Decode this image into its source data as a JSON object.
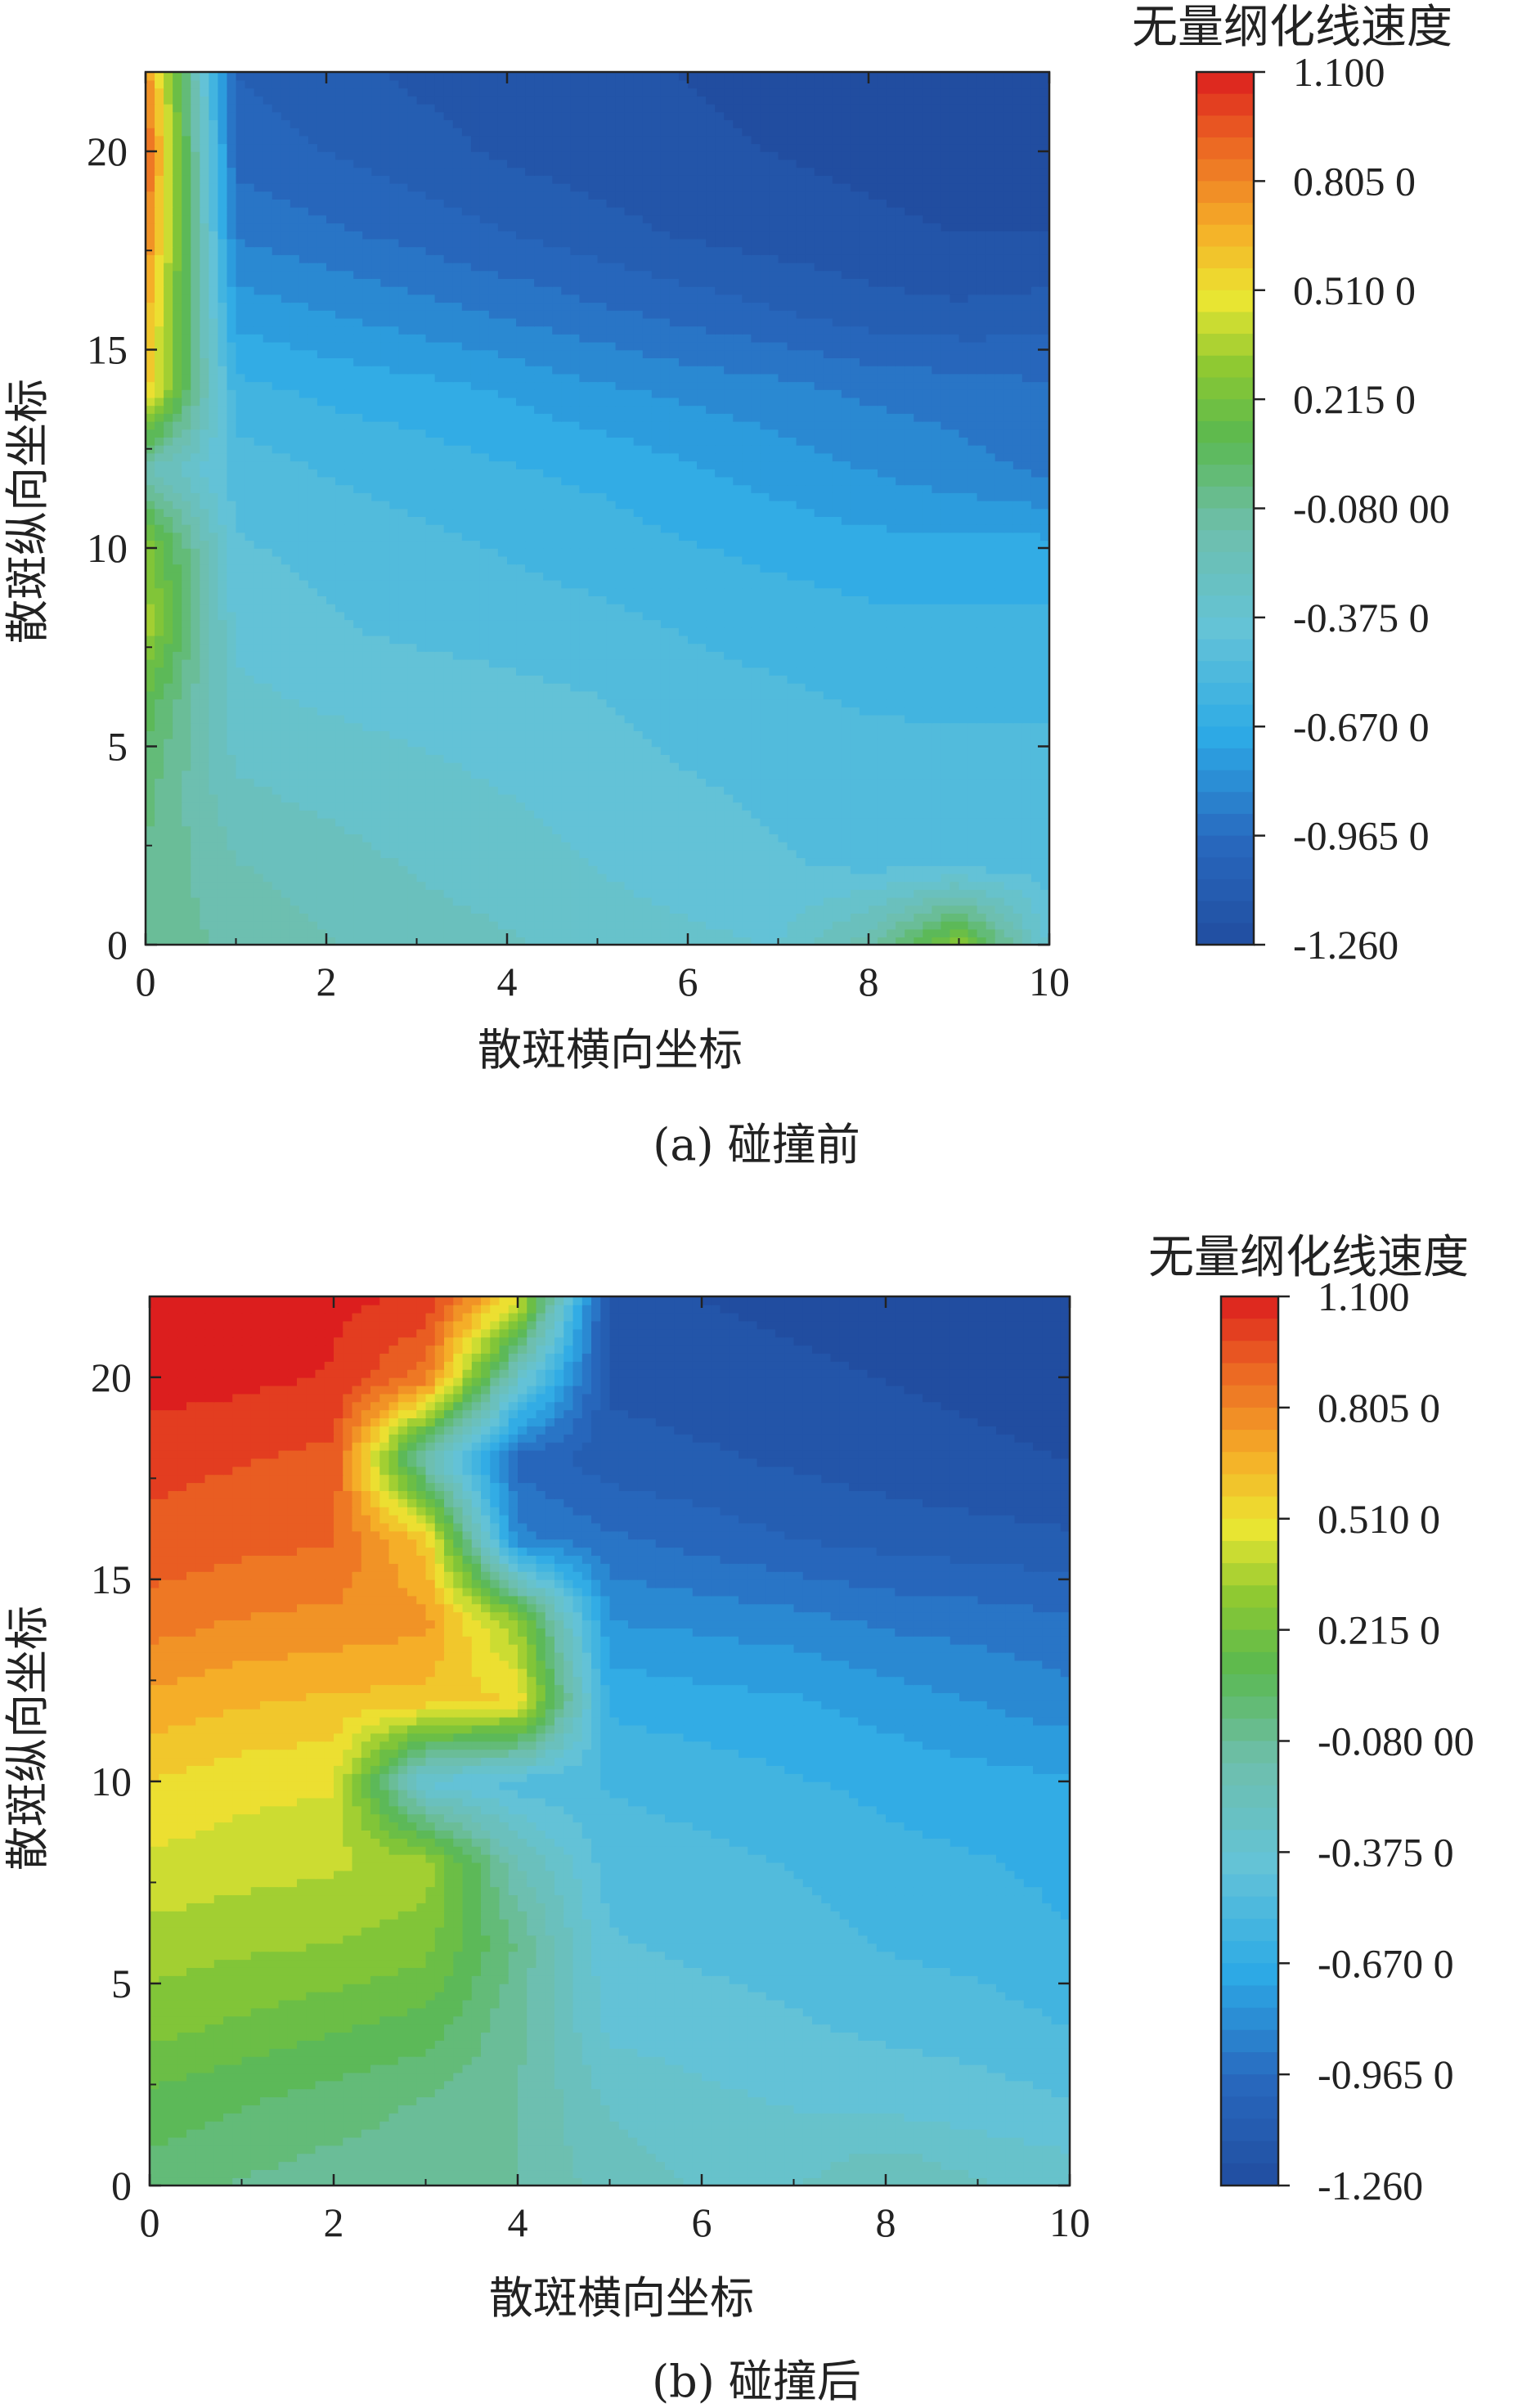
{
  "chart_data": [
    {
      "type": "heatmap",
      "caption": "(a) 碰撞前",
      "xlabel": "散斑横向坐标",
      "ylabel": "散斑纵向坐标",
      "xlim": [
        0,
        10
      ],
      "ylim": [
        0,
        22
      ],
      "xticks": [
        0,
        2,
        4,
        6,
        8,
        10
      ],
      "yticks": [
        0,
        5,
        10,
        15,
        20
      ],
      "x": [
        0,
        1,
        2,
        3,
        4,
        5,
        6,
        7,
        8,
        9,
        10
      ],
      "y": [
        0,
        2,
        4,
        6,
        8,
        10,
        12,
        14,
        16,
        18,
        20,
        22
      ],
      "z": [
        [
          -0.05,
          -0.15,
          -0.2,
          -0.25,
          -0.28,
          -0.32,
          -0.35,
          -0.38,
          -0.15,
          0.3,
          -0.4
        ],
        [
          -0.05,
          -0.2,
          -0.25,
          -0.3,
          -0.33,
          -0.38,
          -0.42,
          -0.45,
          -0.48,
          -0.48,
          -0.5
        ],
        [
          0.0,
          -0.28,
          -0.32,
          -0.35,
          -0.38,
          -0.42,
          -0.45,
          -0.48,
          -0.5,
          -0.52,
          -0.52
        ],
        [
          0.1,
          -0.35,
          -0.38,
          -0.4,
          -0.42,
          -0.45,
          -0.5,
          -0.52,
          -0.55,
          -0.55,
          -0.55
        ],
        [
          0.35,
          -0.4,
          -0.45,
          -0.48,
          -0.5,
          -0.52,
          -0.55,
          -0.58,
          -0.6,
          -0.6,
          -0.6
        ],
        [
          0.3,
          -0.45,
          -0.48,
          -0.52,
          -0.55,
          -0.58,
          -0.62,
          -0.65,
          -0.68,
          -0.68,
          -0.68
        ],
        [
          -0.2,
          -0.5,
          -0.55,
          -0.58,
          -0.62,
          -0.65,
          -0.7,
          -0.75,
          -0.8,
          -0.85,
          -0.9
        ],
        [
          0.6,
          -0.6,
          -0.65,
          -0.68,
          -0.72,
          -0.78,
          -0.82,
          -0.85,
          -0.9,
          -0.92,
          -0.95
        ],
        [
          0.7,
          -0.75,
          -0.8,
          -0.85,
          -0.9,
          -0.95,
          -1.0,
          -1.05,
          -1.1,
          -1.12,
          -1.1
        ],
        [
          0.85,
          -0.9,
          -0.95,
          -1.0,
          -1.05,
          -1.1,
          -1.15,
          -1.18,
          -1.2,
          -1.22,
          -1.22
        ],
        [
          0.95,
          -1.0,
          -1.05,
          -1.1,
          -1.15,
          -1.18,
          -1.2,
          -1.22,
          -1.24,
          -1.25,
          -1.25
        ],
        [
          0.8,
          -1.05,
          -1.1,
          -1.15,
          -1.18,
          -1.2,
          -1.22,
          -1.24,
          -1.25,
          -1.26,
          -1.26
        ]
      ],
      "colorbar": {
        "title": "无量纲化线速度",
        "min": -1.26,
        "max": 1.1,
        "ticks": [
          1.1,
          0.805,
          0.51,
          0.215,
          -0.08,
          -0.375,
          -0.67,
          -0.965,
          -1.26
        ],
        "tick_labels": [
          "1.100",
          "0.805 0",
          "0.510 0",
          "0.215 0",
          "-0.080 00",
          "-0.375 0",
          "-0.670 0",
          "-0.965 0",
          "-1.260"
        ]
      }
    },
    {
      "type": "heatmap",
      "caption": "(b) 碰撞后",
      "xlabel": "散斑横向坐标",
      "ylabel": "散斑纵向坐标",
      "xlim": [
        0,
        10
      ],
      "ylim": [
        0,
        22
      ],
      "xticks": [
        0,
        2,
        4,
        6,
        8,
        10
      ],
      "yticks": [
        0,
        5,
        10,
        15,
        20
      ],
      "x": [
        0,
        1,
        2,
        3,
        4,
        5,
        6,
        7,
        8,
        9,
        10
      ],
      "y": [
        0,
        2,
        4,
        6,
        8,
        10,
        12,
        14,
        16,
        18,
        20,
        22
      ],
      "z": [
        [
          0.0,
          -0.05,
          -0.08,
          -0.08,
          -0.12,
          -0.25,
          -0.3,
          -0.3,
          -0.2,
          -0.28,
          -0.32
        ],
        [
          0.1,
          0.05,
          0.0,
          -0.05,
          -0.12,
          -0.3,
          -0.35,
          -0.38,
          -0.4,
          -0.42,
          -0.45
        ],
        [
          0.25,
          0.2,
          0.15,
          0.1,
          -0.1,
          -0.4,
          -0.42,
          -0.45,
          -0.48,
          -0.5,
          -0.55
        ],
        [
          0.35,
          0.32,
          0.3,
          0.25,
          -0.05,
          -0.45,
          -0.48,
          -0.5,
          -0.55,
          -0.58,
          -0.62
        ],
        [
          0.45,
          0.42,
          0.4,
          0.35,
          -0.2,
          -0.5,
          -0.52,
          -0.55,
          -0.6,
          -0.62,
          -0.65
        ],
        [
          0.55,
          0.5,
          0.48,
          -0.4,
          -0.5,
          -0.55,
          -0.58,
          -0.62,
          -0.65,
          -0.68,
          -0.7
        ],
        [
          0.7,
          0.65,
          0.62,
          0.6,
          0.55,
          -0.65,
          -0.68,
          -0.7,
          -0.75,
          -0.8,
          -0.85
        ],
        [
          0.85,
          0.8,
          0.78,
          0.75,
          0.3,
          -0.8,
          -0.82,
          -0.85,
          -0.9,
          -0.92,
          -0.95
        ],
        [
          0.95,
          0.92,
          0.9,
          0.6,
          -0.85,
          -0.95,
          -1.0,
          -1.05,
          -1.08,
          -1.1,
          -1.12
        ],
        [
          1.0,
          0.98,
          0.95,
          -0.2,
          -1.0,
          -1.1,
          -1.12,
          -1.15,
          -1.18,
          -1.2,
          -1.22
        ],
        [
          1.1,
          1.08,
          1.05,
          0.85,
          -0.3,
          -1.15,
          -1.18,
          -1.2,
          -1.22,
          -1.24,
          -1.25
        ],
        [
          1.1,
          1.1,
          1.08,
          1.05,
          0.5,
          -1.2,
          -1.22,
          -1.24,
          -1.25,
          -1.26,
          -1.26
        ]
      ],
      "colorbar": {
        "title": "无量纲化线速度",
        "min": -1.26,
        "max": 1.1,
        "ticks": [
          1.1,
          0.805,
          0.51,
          0.215,
          -0.08,
          -0.375,
          -0.67,
          -0.965,
          -1.26
        ],
        "tick_labels": [
          "1.100",
          "0.805 0",
          "0.510 0",
          "0.215 0",
          "-0.080 00",
          "-0.375 0",
          "-0.670 0",
          "-0.965 0",
          "-1.260"
        ]
      }
    }
  ]
}
